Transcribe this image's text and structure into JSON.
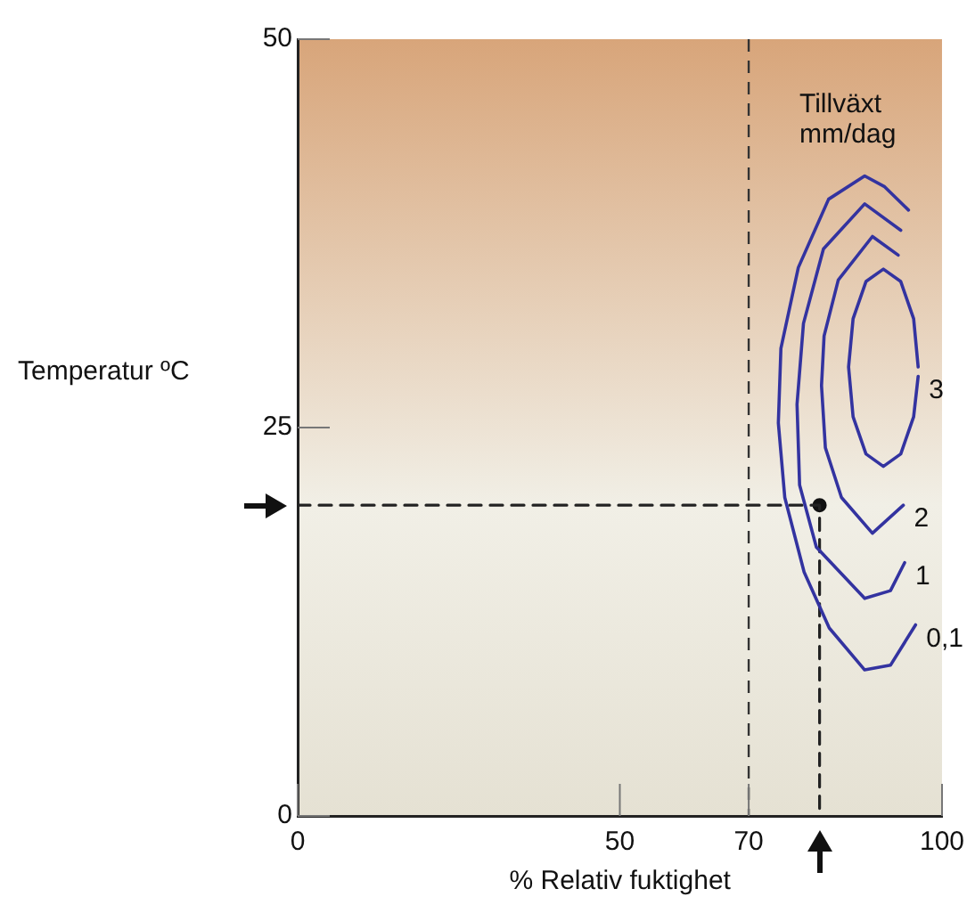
{
  "chart_data": {
    "type": "line",
    "xlabel": "% Relativ fuktighet",
    "ylabel": "Temperatur ºC",
    "xlim": [
      0,
      100
    ],
    "ylim": [
      0,
      50
    ],
    "xticks": [
      0,
      50,
      70,
      100
    ],
    "yticks": [
      0,
      25,
      50
    ],
    "grid": false,
    "legend": false,
    "marker": "none",
    "annotations": [
      "Tillväxt mm/dag"
    ],
    "ref_lines": [
      {
        "axis": "x",
        "value": 70,
        "label": null,
        "color": "#333333",
        "line_style": "dashed"
      }
    ],
    "series": [
      {
        "name": "0,1",
        "color": "#3333a0",
        "x": [
          94.8,
          91.1,
          88.0,
          82.4,
          77.7,
          75.0,
          74.6,
          75.6,
          78.6,
          82.5,
          88.0,
          92.0,
          95.9
        ],
        "values": [
          39.0,
          40.5,
          41.2,
          39.7,
          35.3,
          30.1,
          25.3,
          20.5,
          15.7,
          12.1,
          9.4,
          9.7,
          12.3
        ]
      },
      {
        "name": "1",
        "color": "#3333a0",
        "x": [
          93.6,
          88.0,
          81.6,
          78.5,
          77.5,
          77.9,
          80.5,
          88.0,
          92.0,
          94.2
        ],
        "values": [
          37.7,
          39.4,
          36.5,
          31.7,
          26.5,
          21.3,
          17.3,
          14.0,
          14.5,
          16.3
        ]
      },
      {
        "name": "2",
        "color": "#3333a0",
        "x": [
          93.2,
          89.2,
          83.9,
          81.7,
          81.3,
          81.9,
          84.4,
          89.2,
          94.0
        ],
        "values": [
          36.1,
          37.3,
          34.5,
          30.9,
          27.7,
          23.7,
          20.5,
          18.2,
          20.0
        ]
      },
      {
        "name": "3",
        "color": "#3333a0",
        "x": [
          96.3,
          95.6,
          93.6,
          90.9,
          88.2,
          86.2,
          85.5,
          86.2,
          88.2,
          90.9,
          93.6,
          95.6,
          96.3
        ],
        "values": [
          28.9,
          32.0,
          34.4,
          35.2,
          34.4,
          32.0,
          28.9,
          25.7,
          23.3,
          22.5,
          23.3,
          25.7,
          28.3
        ]
      },
      {
        "type": "line",
        "color": "#222222",
        "line_style": "dashed",
        "x": [
          0,
          81,
          81
        ],
        "values": [
          20,
          20,
          0
        ]
      },
      {
        "type": "scatter",
        "color": "#111111",
        "marker": "circle",
        "x": [
          81
        ],
        "values": [
          20
        ]
      }
    ]
  }
}
